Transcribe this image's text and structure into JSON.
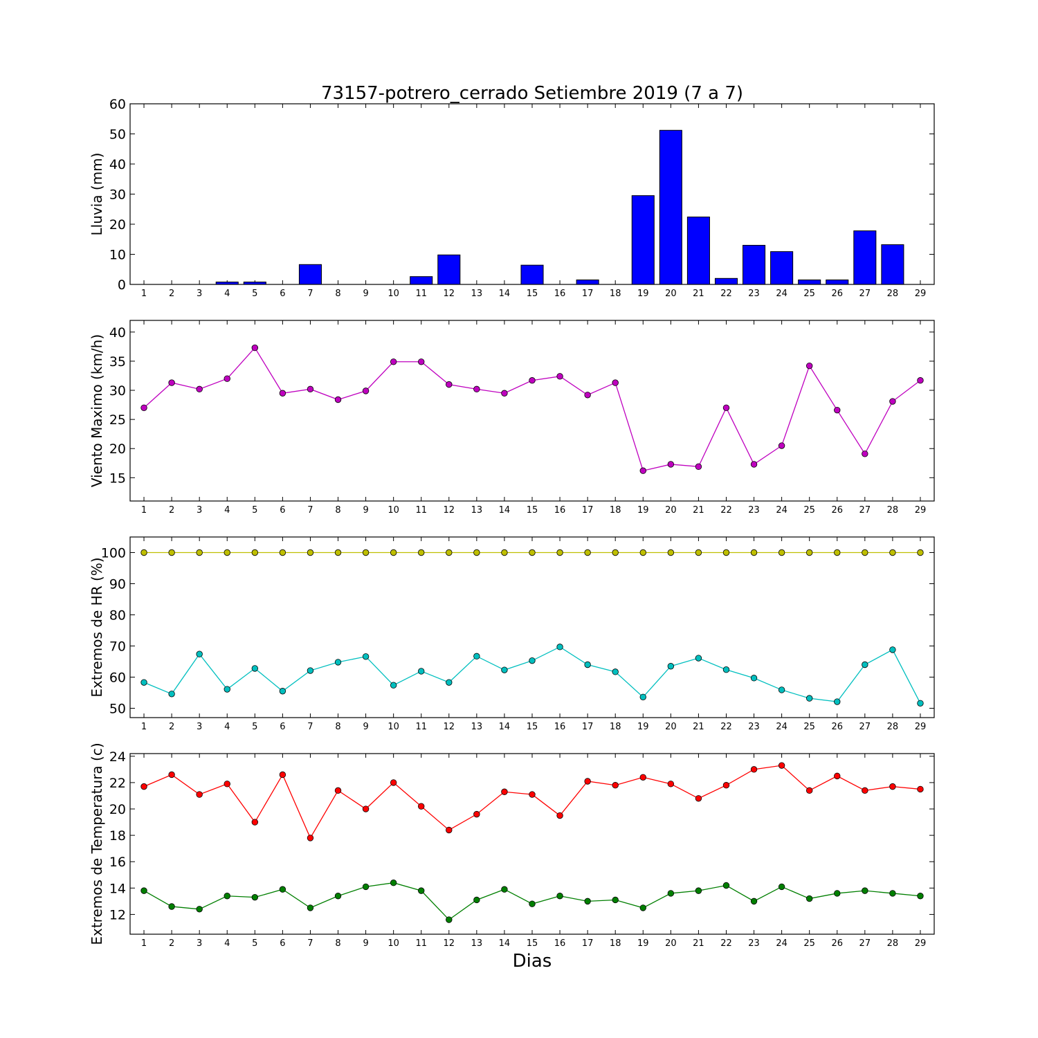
{
  "title": "73157-potrero_cerrado Setiembre 2019  (7 a 7)",
  "xlabel": "Dias",
  "days": [
    "1",
    "2",
    "3",
    "4",
    "5",
    "6",
    "7",
    "8",
    "9",
    "10",
    "11",
    "12",
    "13",
    "14",
    "15",
    "16",
    "17",
    "18",
    "19",
    "20",
    "21",
    "22",
    "23",
    "24",
    "25",
    "26",
    "27",
    "28",
    "29"
  ],
  "chart_data": [
    {
      "type": "bar",
      "ylabel": "Lluvia (mm)",
      "ylim": [
        0,
        60
      ],
      "yticks": [
        0,
        10,
        20,
        30,
        40,
        50,
        60
      ],
      "color": "#0000ff",
      "values": [
        0,
        0,
        0,
        0.8,
        0.8,
        0,
        6.6,
        0,
        0,
        0,
        2.6,
        9.8,
        0,
        0,
        6.4,
        0,
        1.5,
        0,
        29.5,
        51.2,
        22.4,
        2.0,
        13.0,
        10.9,
        1.5,
        1.5,
        17.8,
        13.2,
        0
      ]
    },
    {
      "type": "line",
      "ylabel": "Viento Maximo (km/h)",
      "ylim": [
        11,
        42
      ],
      "yticks": [
        15,
        20,
        25,
        30,
        35,
        40
      ],
      "series": [
        {
          "color": "#bf00bf",
          "values": [
            27.0,
            31.3,
            30.2,
            32.0,
            37.3,
            29.5,
            30.2,
            28.4,
            29.9,
            34.9,
            34.9,
            31.0,
            30.2,
            29.5,
            31.7,
            32.4,
            29.2,
            31.3,
            16.2,
            17.3,
            16.9,
            27.0,
            17.3,
            20.5,
            34.2,
            26.6,
            19.1,
            28.1,
            31.7
          ]
        }
      ]
    },
    {
      "type": "line",
      "ylabel": "Extremos de HR (%)",
      "ylim": [
        47,
        105
      ],
      "yticks": [
        50,
        60,
        70,
        80,
        90,
        100
      ],
      "series": [
        {
          "color": "#bfbf00",
          "values": [
            100,
            100,
            100,
            100,
            100,
            100,
            100,
            100,
            100,
            100,
            100,
            100,
            100,
            100,
            100,
            100,
            100,
            100,
            100,
            100,
            100,
            100,
            100,
            100,
            100,
            100,
            100,
            100,
            100
          ]
        },
        {
          "color": "#00bfbf",
          "values": [
            58.3,
            54.6,
            67.4,
            56.1,
            62.8,
            55.5,
            62.1,
            64.8,
            66.6,
            57.4,
            61.9,
            58.3,
            66.7,
            62.3,
            65.3,
            69.7,
            64.0,
            61.7,
            53.6,
            63.5,
            66.1,
            62.4,
            59.7,
            55.9,
            53.2,
            52.1,
            64.0,
            68.8,
            51.6
          ]
        }
      ]
    },
    {
      "type": "line",
      "ylabel": "Extremos de Temperatura (c)",
      "ylim": [
        10.5,
        24.2
      ],
      "yticks": [
        12,
        14,
        16,
        18,
        20,
        22,
        24
      ],
      "series": [
        {
          "color": "#ff0000",
          "values": [
            21.7,
            22.6,
            21.1,
            21.9,
            19.0,
            22.6,
            17.8,
            21.4,
            20.0,
            22.0,
            20.2,
            18.4,
            19.6,
            21.3,
            21.1,
            19.5,
            22.1,
            21.8,
            22.4,
            21.9,
            20.8,
            21.8,
            23.0,
            23.3,
            21.4,
            22.5,
            21.4,
            21.7,
            21.5
          ]
        },
        {
          "color": "#007f00",
          "values": [
            13.8,
            12.6,
            12.4,
            13.4,
            13.3,
            13.9,
            12.5,
            13.4,
            14.1,
            14.4,
            13.8,
            11.6,
            13.1,
            13.9,
            12.8,
            13.4,
            13.0,
            13.1,
            12.5,
            13.6,
            13.8,
            14.2,
            13.0,
            14.1,
            13.2,
            13.6,
            13.8,
            13.6,
            13.4
          ]
        }
      ]
    }
  ]
}
